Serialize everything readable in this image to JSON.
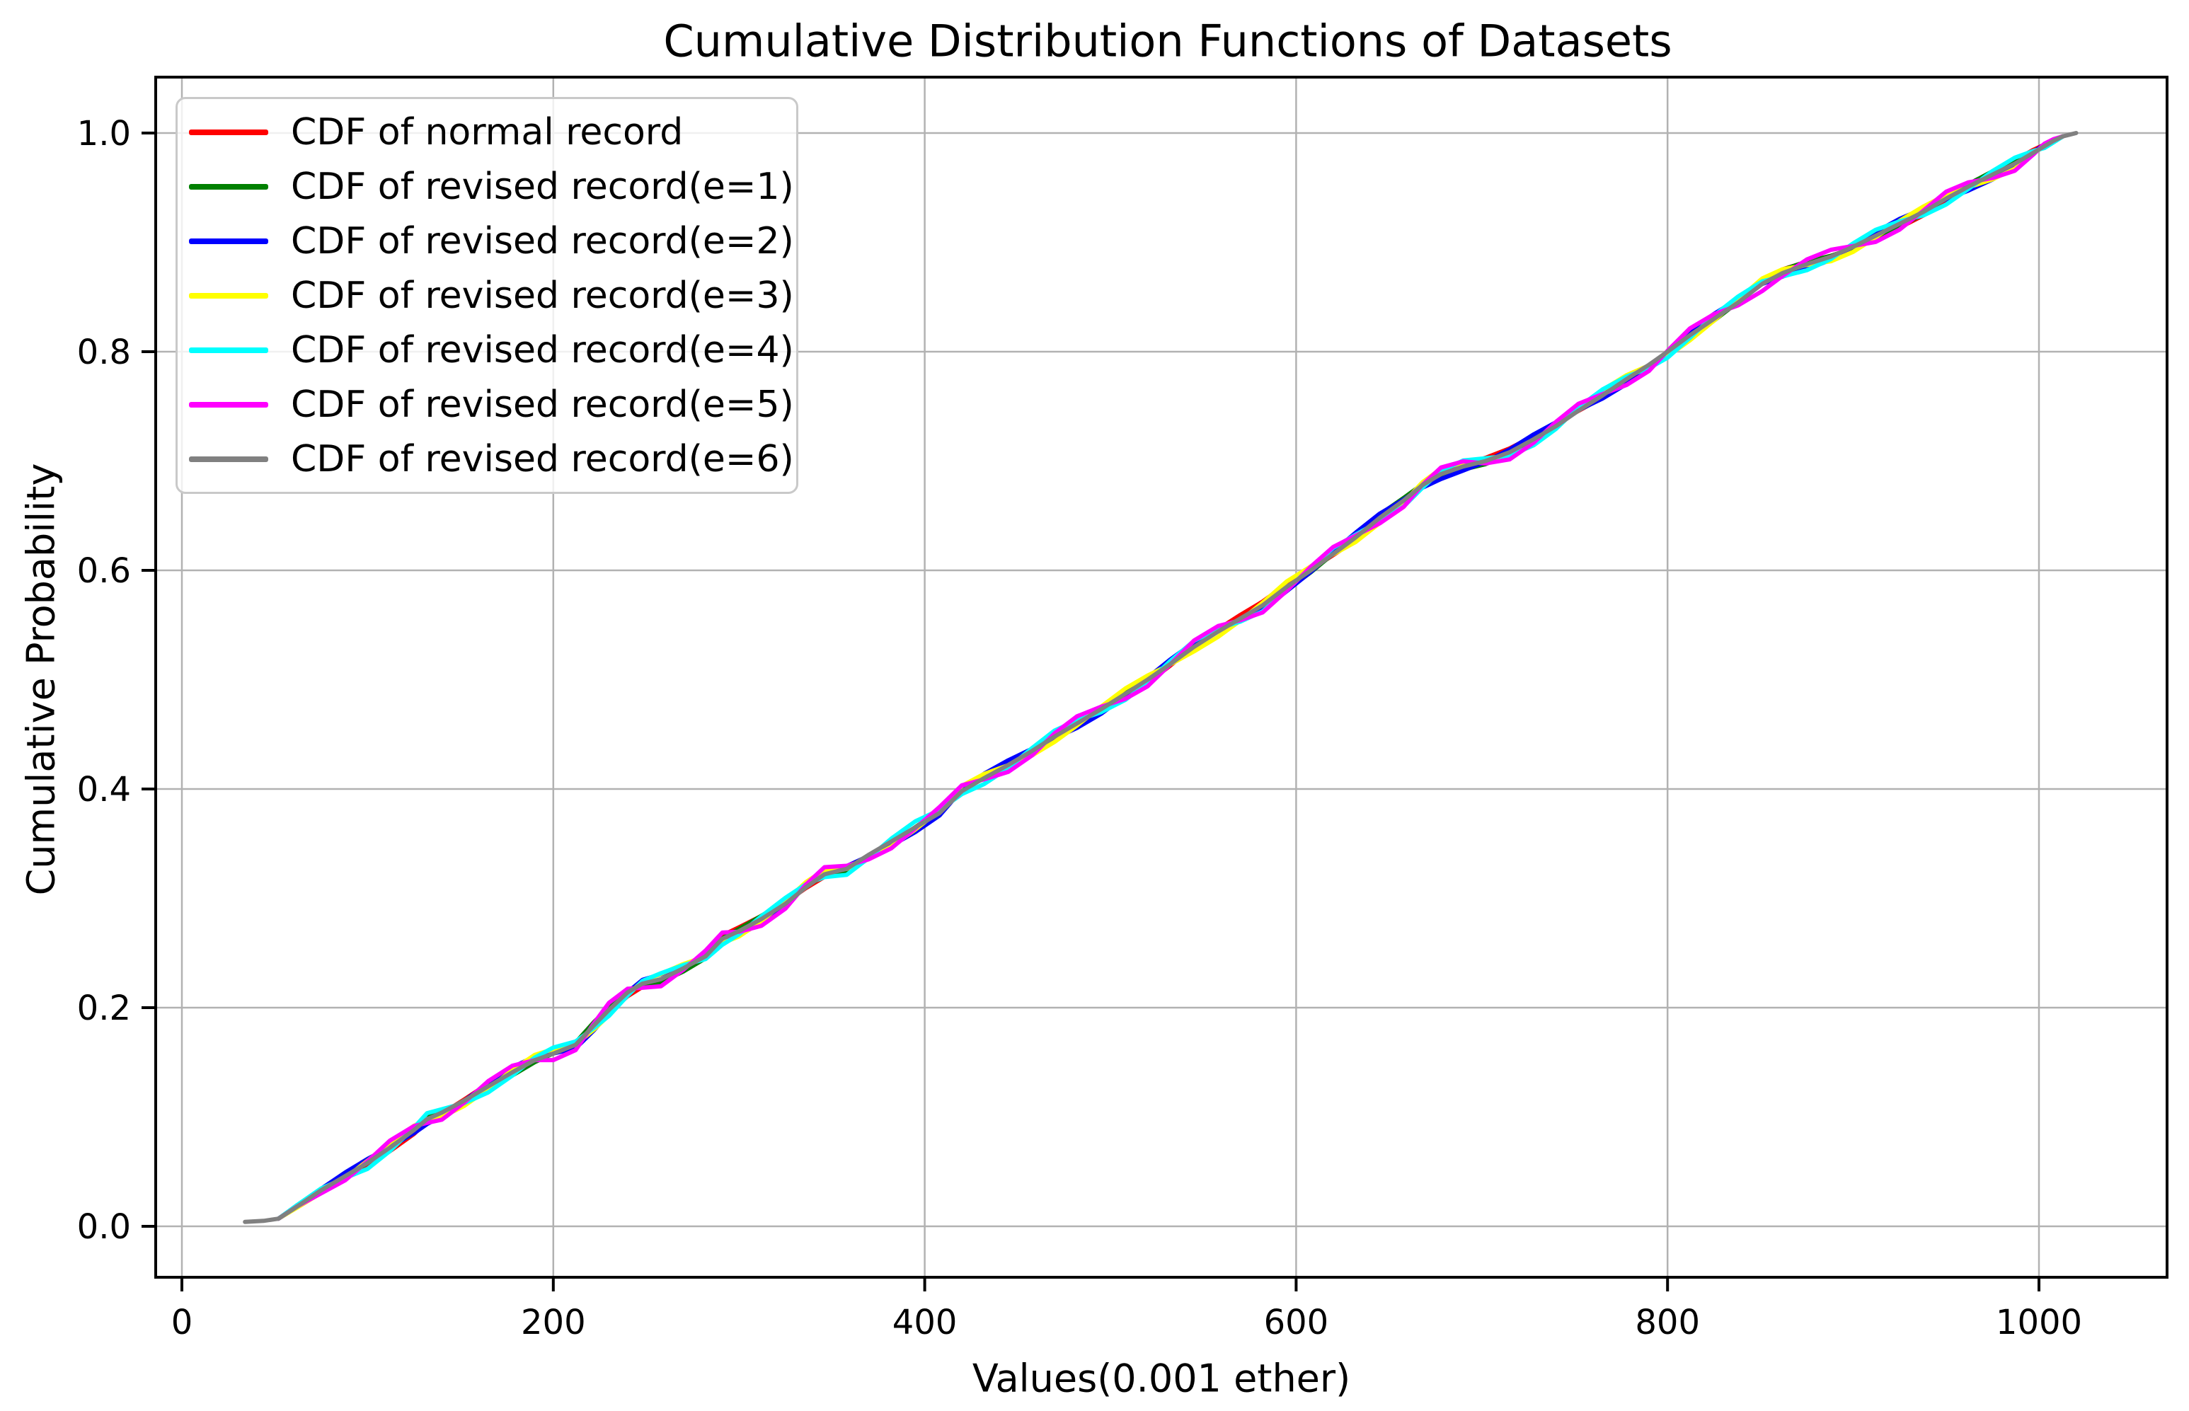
{
  "chart_data": {
    "type": "line",
    "title": "Cumulative Distribution Functions of Datasets",
    "xlabel": "Values(0.001 ether)",
    "ylabel": "Cumulative Probability",
    "xlim": [
      -20,
      1070
    ],
    "ylim": [
      -0.047,
      1.051
    ],
    "grid": true,
    "grid_color": "#b2b2b2",
    "spine_color": "#000000",
    "background": "#ffffff",
    "line_width": 6,
    "legend_location": "upper left",
    "xticks": [
      0,
      200,
      400,
      600,
      800,
      1000
    ],
    "xtick_labels": [
      "0",
      "200",
      "400",
      "600",
      "800",
      "1000"
    ],
    "yticks": [
      0.0,
      0.2,
      0.4,
      0.6,
      0.8,
      1.0
    ],
    "ytick_labels": [
      "0.0",
      "0.2",
      "0.4",
      "0.6",
      "0.8",
      "1.0"
    ],
    "x": [
      34,
      44,
      52,
      62,
      75,
      88,
      100,
      112,
      125,
      132,
      140,
      152,
      165,
      178,
      190,
      200,
      212,
      222,
      230,
      240,
      248,
      258,
      270,
      282,
      291,
      300,
      312,
      325,
      336,
      346,
      358,
      370,
      382,
      395,
      408,
      420,
      432,
      445,
      458,
      470,
      482,
      495,
      508,
      520,
      532,
      545,
      558,
      570,
      582,
      595,
      608,
      620,
      632,
      645,
      658,
      668,
      678,
      690,
      702,
      715,
      728,
      740,
      752,
      765,
      778,
      790,
      800,
      812,
      825,
      838,
      851,
      862,
      875,
      888,
      900,
      912,
      925,
      938,
      950,
      962,
      975,
      987,
      997,
      1003,
      1008,
      1013,
      1020
    ],
    "values": [
      0.004,
      0.005,
      0.007,
      0.018,
      0.033,
      0.046,
      0.058,
      0.072,
      0.088,
      0.098,
      0.104,
      0.115,
      0.128,
      0.141,
      0.152,
      0.158,
      0.166,
      0.184,
      0.198,
      0.214,
      0.222,
      0.226,
      0.236,
      0.247,
      0.263,
      0.27,
      0.281,
      0.295,
      0.31,
      0.322,
      0.327,
      0.34,
      0.352,
      0.365,
      0.378,
      0.398,
      0.41,
      0.422,
      0.435,
      0.448,
      0.46,
      0.473,
      0.487,
      0.5,
      0.514,
      0.53,
      0.544,
      0.556,
      0.568,
      0.585,
      0.6,
      0.615,
      0.63,
      0.648,
      0.664,
      0.678,
      0.688,
      0.695,
      0.7,
      0.708,
      0.72,
      0.732,
      0.746,
      0.76,
      0.775,
      0.788,
      0.8,
      0.815,
      0.83,
      0.845,
      0.862,
      0.872,
      0.88,
      0.887,
      0.896,
      0.906,
      0.917,
      0.928,
      0.94,
      0.951,
      0.962,
      0.972,
      0.982,
      0.988,
      0.993,
      0.997,
      1.0
    ],
    "values_note": "All seven series depict nearly identical CDFs; shared base values above, per-series sub-pixel overlap jitter below.",
    "series": [
      {
        "name": "CDF of normal record",
        "color": "#ff0000",
        "overlap_jitter": {
          "amp": 0.0035,
          "freq": 0.55,
          "phase": 0.5
        },
        "trim_start": 2,
        "trim_end": 1
      },
      {
        "name": "CDF of revised record(e=1)",
        "color": "#008000",
        "overlap_jitter": {
          "amp": 0.003,
          "freq": 0.7,
          "phase": 2.1
        },
        "trim_start": 2,
        "trim_end": 1
      },
      {
        "name": "CDF of revised record(e=2)",
        "color": "#0000ff",
        "overlap_jitter": {
          "amp": 0.0045,
          "freq": 0.8,
          "phase": 3.7
        },
        "trim_start": 2,
        "trim_end": 1
      },
      {
        "name": "CDF of revised record(e=3)",
        "color": "#ffff00",
        "overlap_jitter": {
          "amp": 0.005,
          "freq": 0.9,
          "phase": 1.3
        },
        "trim_start": 2,
        "trim_end": 1
      },
      {
        "name": "CDF of revised record(e=4)",
        "color": "#00ffff",
        "overlap_jitter": {
          "amp": 0.0055,
          "freq": 1.05,
          "phase": 4.6
        },
        "trim_start": 2,
        "trim_end": 1
      },
      {
        "name": "CDF of revised record(e=5)",
        "color": "#ff00ff",
        "overlap_jitter": {
          "amp": 0.0065,
          "freq": 1.15,
          "phase": 5.9
        },
        "trim_start": 2,
        "trim_end": 1
      },
      {
        "name": "CDF of revised record(e=6)",
        "color": "#808080",
        "overlap_jitter": {
          "amp": 0.0,
          "freq": 0.0,
          "phase": 0.0
        },
        "trim_start": 0,
        "trim_end": 0
      }
    ]
  }
}
